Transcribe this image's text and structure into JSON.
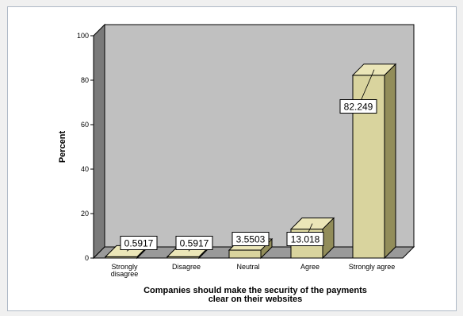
{
  "chart_data": {
    "type": "bar",
    "categories": [
      "Strongly disagree",
      "Disagree",
      "Neutral",
      "Agree",
      "Strongly agree"
    ],
    "category_label_lines": [
      [
        "Strongly",
        "disagree"
      ],
      [
        "Disagree"
      ],
      [
        "Neutral"
      ],
      [
        "Agree"
      ],
      [
        "Strongly agree"
      ]
    ],
    "values": [
      0.5917,
      0.5917,
      3.5503,
      13.018,
      82.249
    ],
    "data_labels": [
      "0.5917",
      "0.5917",
      "3.5503",
      "13.018",
      "82.249"
    ],
    "xlabel_lines": [
      "Companies should make the security of the payments",
      "clear on their websites"
    ],
    "ylabel": "Percent",
    "ylim": [
      0,
      100
    ],
    "yticks": [
      0,
      20,
      40,
      60,
      80,
      100
    ],
    "colors": {
      "wall": "#c0c0c0",
      "floor": "#9a9a9a",
      "side_wall": "#7a7a7a",
      "bar_front": "#d9d49e",
      "bar_side": "#928d5a",
      "bar_top": "#ebe6b8",
      "outline": "#000000"
    }
  }
}
